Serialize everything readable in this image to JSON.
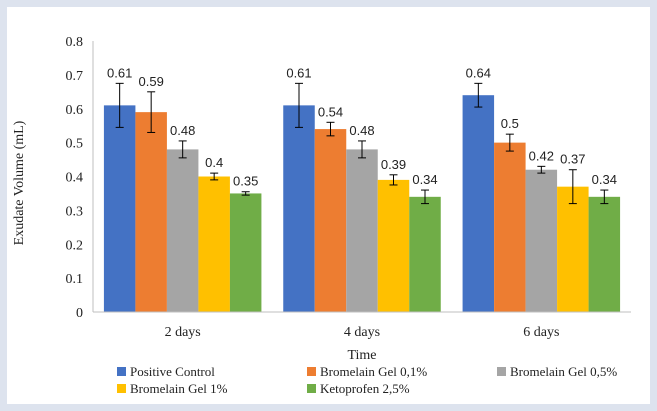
{
  "chart_data": {
    "type": "bar",
    "title": "",
    "xlabel": "Time",
    "ylabel": "Exudate Volume (mL)",
    "ylim": [
      0,
      0.8
    ],
    "yticks": [
      "0",
      "0.1",
      "0.2",
      "0.3",
      "0.4",
      "0.5",
      "0.6",
      "0.7",
      "0.8"
    ],
    "categories": [
      "2 days",
      "4 days",
      "6 days"
    ],
    "legend_position": "bottom",
    "grid": false,
    "series": [
      {
        "name": "Positive Control",
        "color": "#4472c4",
        "values": [
          0.61,
          0.61,
          0.64
        ],
        "labels": [
          "0.61",
          "0.61",
          "0.64"
        ],
        "errors": [
          0.065,
          0.065,
          0.035
        ]
      },
      {
        "name": "Bromelain Gel 0,1%",
        "color": "#ed7d31",
        "values": [
          0.59,
          0.54,
          0.5
        ],
        "labels": [
          "0.59",
          "0.54",
          "0.5"
        ],
        "errors": [
          0.06,
          0.02,
          0.025
        ]
      },
      {
        "name": "Bromelain Gel 0,5%",
        "color": "#a5a5a5",
        "values": [
          0.48,
          0.48,
          0.42
        ],
        "labels": [
          "0.48",
          "0.48",
          "0.42"
        ],
        "errors": [
          0.025,
          0.025,
          0.01
        ]
      },
      {
        "name": "Bromelain Gel 1%",
        "color": "#ffc000",
        "values": [
          0.4,
          0.39,
          0.37
        ],
        "labels": [
          "0.4",
          "0.39",
          "0.37"
        ],
        "errors": [
          0.01,
          0.015,
          0.05
        ]
      },
      {
        "name": "Ketoprofen 2,5%",
        "color": "#70ad47",
        "values": [
          0.35,
          0.34,
          0.34
        ],
        "labels": [
          "0.35",
          "0.34",
          "0.34"
        ],
        "errors": [
          0.005,
          0.02,
          0.02
        ]
      }
    ]
  }
}
